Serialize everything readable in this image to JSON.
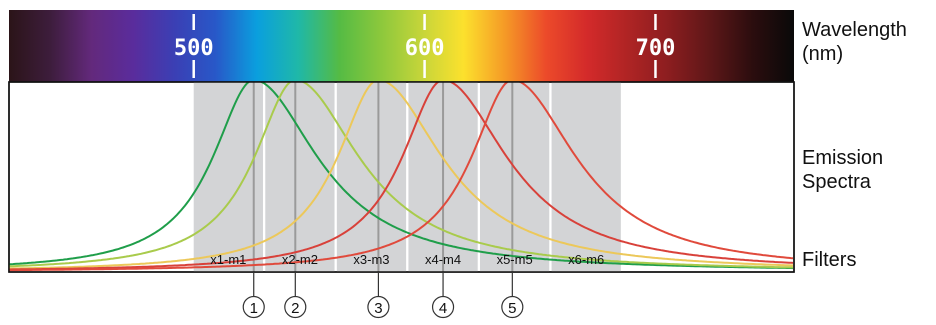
{
  "wavelength_axis": {
    "ticks": [
      {
        "label": "500",
        "nm": 500
      },
      {
        "label": "600",
        "nm": 600
      },
      {
        "label": "700",
        "nm": 700
      }
    ],
    "spectrum_colors": [
      "#2b1418",
      "#3d1d3c",
      "#63297c",
      "#5a2c9c",
      "#3b3fb4",
      "#2858c8",
      "#0a9fde",
      "#1fb8a8",
      "#55bb44",
      "#8cc83c",
      "#c6d53a",
      "#fce12d",
      "#f59a26",
      "#ec4a2a",
      "#d32a2a",
      "#ae2424",
      "#8a1d1f",
      "#5c1718",
      "#2b0d0e",
      "#090909"
    ]
  },
  "labels": {
    "wavelength": "Wavelength\n(nm)",
    "emission": "Emission\nSpectra",
    "filters": "Filters"
  },
  "filters": [
    {
      "label": "x1-m1",
      "start_nm": 500,
      "end_nm": 530
    },
    {
      "label": "x2-m2",
      "start_nm": 531,
      "end_nm": 561
    },
    {
      "label": "x3-m3",
      "start_nm": 562,
      "end_nm": 592
    },
    {
      "label": "x4-m4",
      "start_nm": 593,
      "end_nm": 623
    },
    {
      "label": "x5-m5",
      "start_nm": 624,
      "end_nm": 654
    },
    {
      "label": "x6-m6",
      "start_nm": 655,
      "end_nm": 685
    }
  ],
  "emission_curves": [
    {
      "peak_nm": 526,
      "color": "#1f9e4a"
    },
    {
      "peak_nm": 544,
      "color": "#a9cb4c"
    },
    {
      "peak_nm": 580,
      "color": "#ecc85a"
    },
    {
      "peak_nm": 608,
      "color": "#d8413a"
    },
    {
      "peak_nm": 638,
      "color": "#e04a3c"
    }
  ],
  "markers": [
    {
      "label": "1",
      "nm": 526
    },
    {
      "label": "2",
      "nm": 544
    },
    {
      "label": "3",
      "nm": 580
    },
    {
      "label": "4",
      "nm": 608
    },
    {
      "label": "5",
      "nm": 638
    }
  ],
  "colors": {
    "filter_fill": "#d3d4d6",
    "marker_line": "#9a9a9a",
    "tick": "#ffffff"
  }
}
